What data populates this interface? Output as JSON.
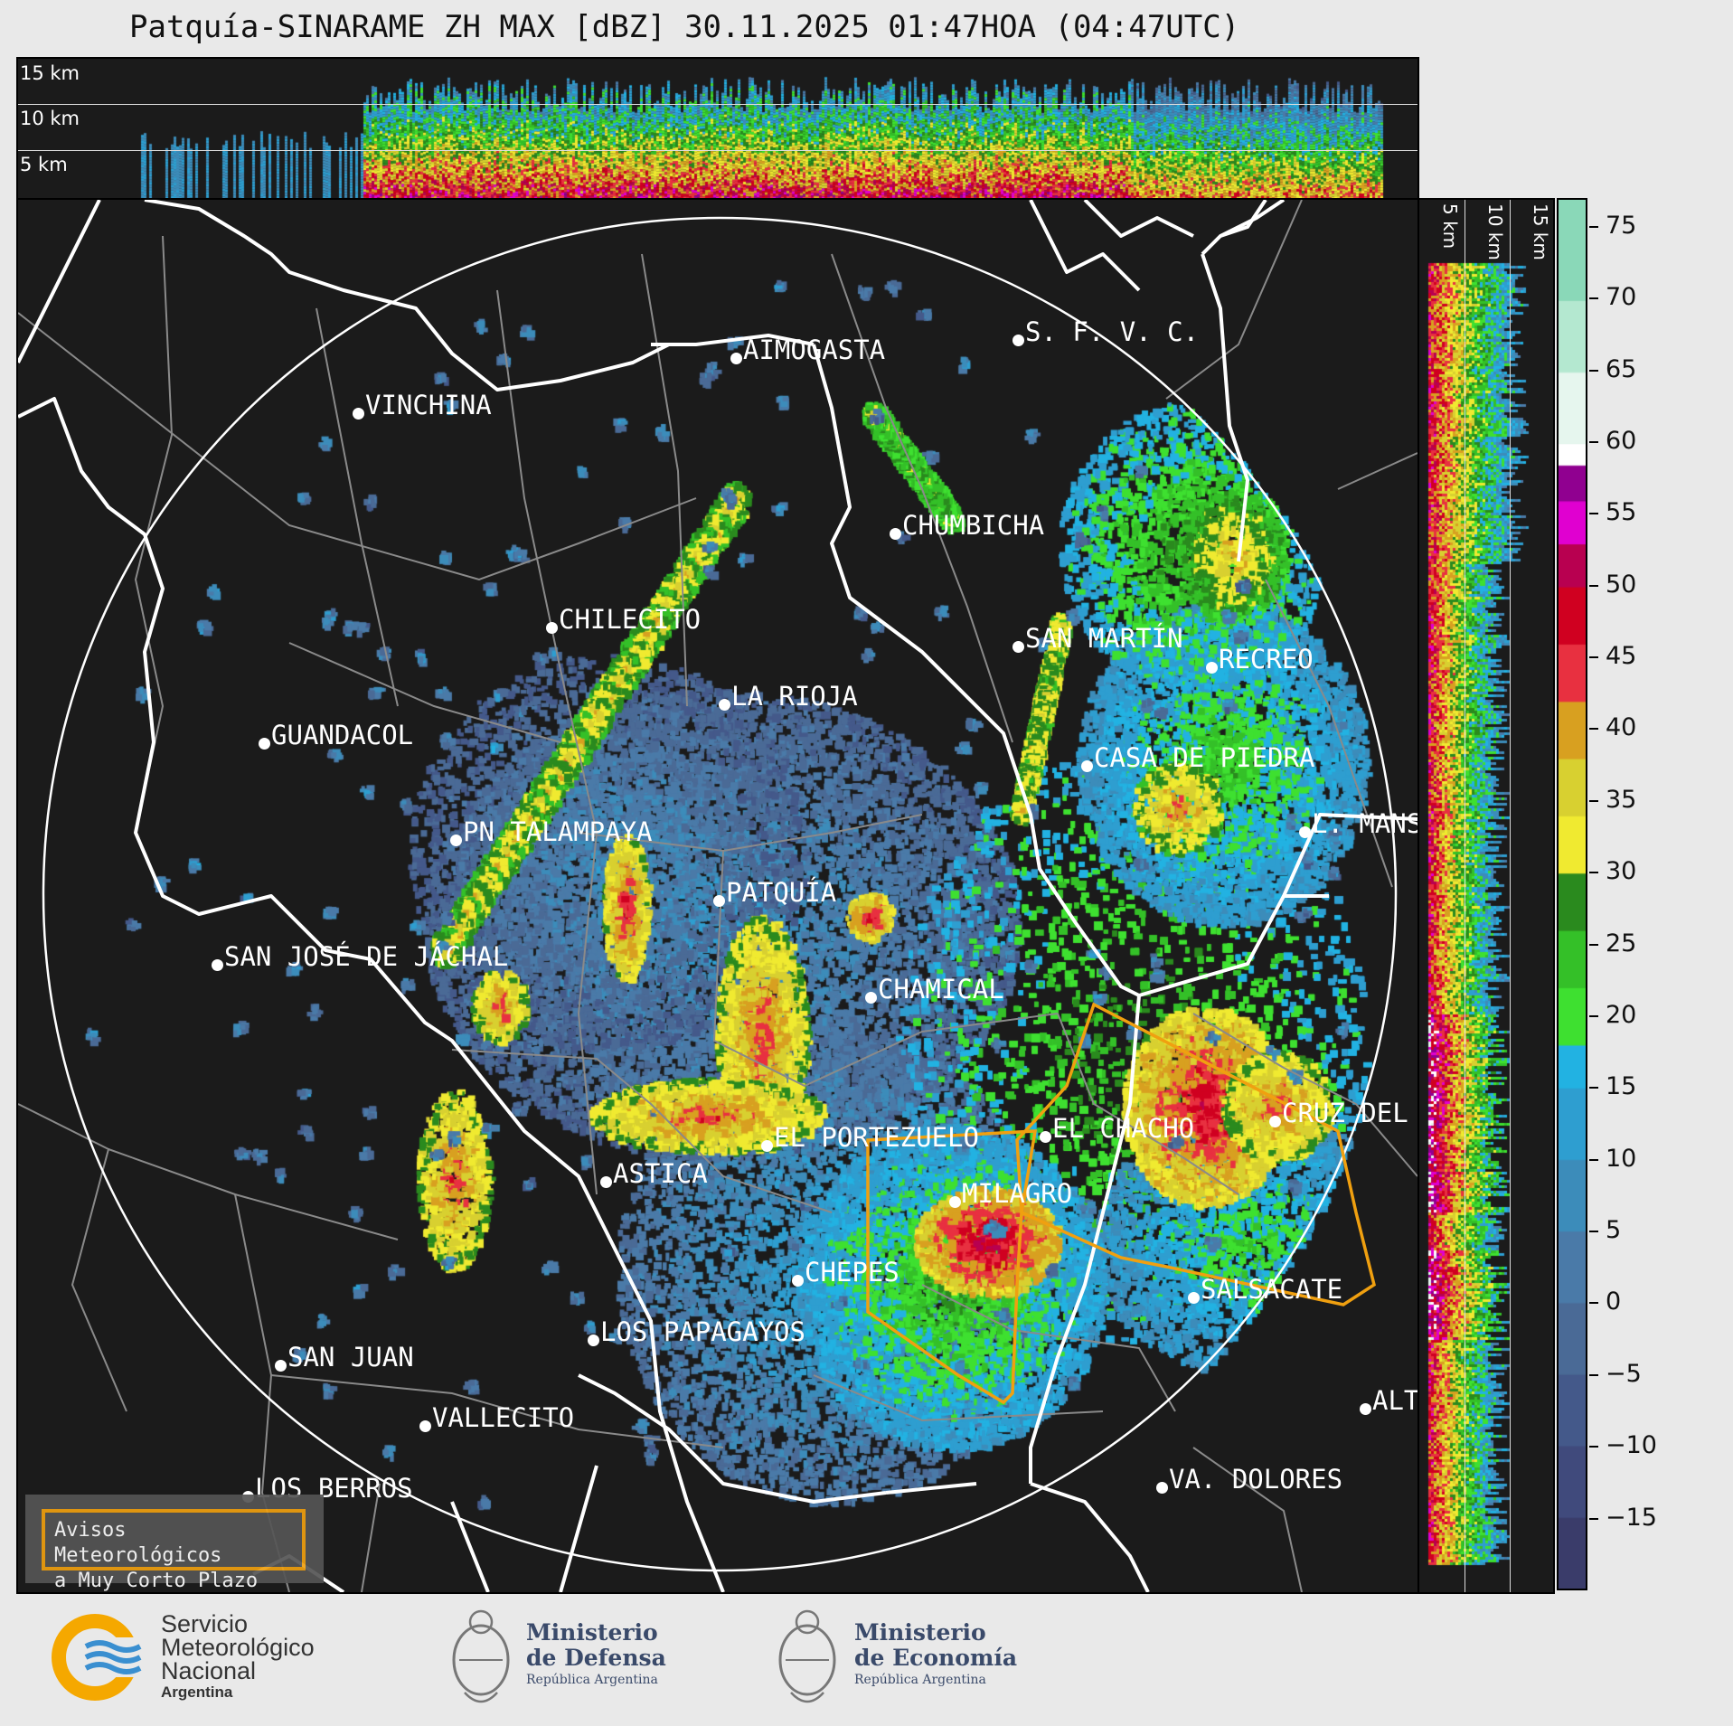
{
  "title": "Patquía-SINARAME ZH MAX [dBZ] 30.11.2025 01:47HOA (04:47UTC)",
  "top_section": {
    "altitude_labels": [
      "15 km",
      "10 km",
      "5 km"
    ]
  },
  "side_section": {
    "altitude_labels": [
      "5 km",
      "10 km",
      "15 km"
    ]
  },
  "colorbar": {
    "ticks": [
      "75",
      "70",
      "65",
      "60",
      "55",
      "50",
      "45",
      "40",
      "35",
      "30",
      "25",
      "20",
      "15",
      "10",
      "5",
      "0",
      "−5",
      "−10",
      "−15"
    ],
    "min": -20,
    "max": 77,
    "stops": [
      {
        "from": -20,
        "color": "#3a3c6a"
      },
      {
        "from": -15,
        "color": "#404a7c"
      },
      {
        "from": -10,
        "color": "#44598a"
      },
      {
        "from": -5,
        "color": "#4a6a96"
      },
      {
        "from": 0,
        "color": "#4a7aa8"
      },
      {
        "from": 5,
        "color": "#3c8cba"
      },
      {
        "from": 10,
        "color": "#2e9ed0"
      },
      {
        "from": 15,
        "color": "#22b2e2"
      },
      {
        "from": 18,
        "color": "#3ee030"
      },
      {
        "from": 22,
        "color": "#34c028"
      },
      {
        "from": 26,
        "color": "#2a8a1e"
      },
      {
        "from": 30,
        "color": "#f0ea30"
      },
      {
        "from": 34,
        "color": "#d8d030"
      },
      {
        "from": 38,
        "color": "#d8a020"
      },
      {
        "from": 42,
        "color": "#e83040"
      },
      {
        "from": 46,
        "color": "#d00020"
      },
      {
        "from": 50,
        "color": "#b80050"
      },
      {
        "from": 53,
        "color": "#e000d0"
      },
      {
        "from": 56,
        "color": "#900090"
      },
      {
        "from": 58.5,
        "color": "#ffffff"
      },
      {
        "from": 60,
        "color": "#e6f6ee"
      },
      {
        "from": 65,
        "color": "#b4e8d0"
      },
      {
        "from": 70,
        "color": "#8ad8b8"
      }
    ]
  },
  "cities": [
    {
      "name": "AIMOGASTA"
    },
    {
      "name": "S. F. V. C."
    },
    {
      "name": "VINCHINA"
    },
    {
      "name": "CHUMBICHA"
    },
    {
      "name": "CHILECITO"
    },
    {
      "name": "SAN MARTÍN"
    },
    {
      "name": "RECREO"
    },
    {
      "name": "LA RIOJA"
    },
    {
      "name": "GUANDACOL"
    },
    {
      "name": "CASA DE PIEDRA"
    },
    {
      "name": "PN TALAMPAYA"
    },
    {
      "name": "L. MANS"
    },
    {
      "name": "PATQUÍA"
    },
    {
      "name": "SAN JOSÉ DE JÁCHAL"
    },
    {
      "name": "CHAMICAL"
    },
    {
      "name": "CRUZ DEL"
    },
    {
      "name": "EL CHACHO"
    },
    {
      "name": "EL PORTEZUELO"
    },
    {
      "name": "ASTICA"
    },
    {
      "name": "MILAGRO"
    },
    {
      "name": "CHEPES"
    },
    {
      "name": "SALSACATE"
    },
    {
      "name": "LOS PAPAGAYOS"
    },
    {
      "name": "SAN JUAN"
    },
    {
      "name": "ALT"
    },
    {
      "name": "VALLECITO"
    },
    {
      "name": "VA. DOLORES"
    },
    {
      "name": "LOS BERROS"
    }
  ],
  "legend": {
    "line1": "Avisos Meteorológicos",
    "line2": "a Muy Corto Plazo",
    "color": "#f0a010"
  },
  "logos": {
    "smn": {
      "line1": "Servicio",
      "line2": "Meteorológico",
      "line3": "Nacional",
      "line4": "Argentina"
    },
    "defensa": {
      "line1": "Ministerio",
      "line2": "de Defensa",
      "line3": "República Argentina"
    },
    "economia": {
      "line1": "Ministerio",
      "line2": "de Economía",
      "line3": "República Argentina"
    }
  }
}
